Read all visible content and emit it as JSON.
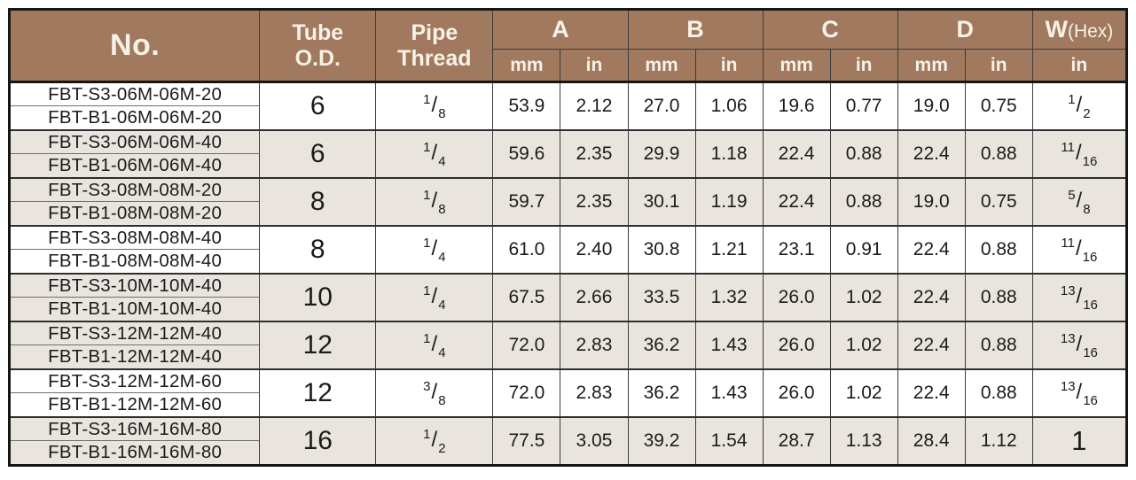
{
  "colors": {
    "header_bg": "#a1795f",
    "header_text": "#f7f2e7",
    "row_shaded": "#e9e5de",
    "row_plain": "#ffffff",
    "border_dark": "#161616",
    "grid": "#3c3c3c",
    "text": "#1b1b1b"
  },
  "table": {
    "headers": {
      "no": "No.",
      "tube_od": "Tube\nO.D.",
      "pipe_thread": "Pipe\nThread",
      "dims": [
        "A",
        "B",
        "C",
        "D"
      ],
      "w_label": "W",
      "w_suffix": "(Hex)",
      "unit_mm": "mm",
      "unit_in": "in"
    },
    "rows": [
      {
        "part_numbers": [
          "FBT-S3-06M-06M-20",
          "FBT-B1-06M-06M-20"
        ],
        "tube_od": "6",
        "pipe_thread": {
          "num": "1",
          "den": "8"
        },
        "values": [
          "53.9",
          "2.12",
          "27.0",
          "1.06",
          "19.6",
          "0.77",
          "19.0",
          "0.75"
        ],
        "w_hex": {
          "num": "1",
          "den": "2"
        },
        "shaded": false
      },
      {
        "part_numbers": [
          "FBT-S3-06M-06M-40",
          "FBT-B1-06M-06M-40"
        ],
        "tube_od": "6",
        "pipe_thread": {
          "num": "1",
          "den": "4"
        },
        "values": [
          "59.6",
          "2.35",
          "29.9",
          "1.18",
          "22.4",
          "0.88",
          "22.4",
          "0.88"
        ],
        "w_hex": {
          "num": "11",
          "den": "16"
        },
        "shaded": true
      },
      {
        "part_numbers": [
          "FBT-S3-08M-08M-20",
          "FBT-B1-08M-08M-20"
        ],
        "tube_od": "8",
        "pipe_thread": {
          "num": "1",
          "den": "8"
        },
        "values": [
          "59.7",
          "2.35",
          "30.1",
          "1.19",
          "22.4",
          "0.88",
          "19.0",
          "0.75"
        ],
        "w_hex": {
          "num": "5",
          "den": "8"
        },
        "shaded": true
      },
      {
        "part_numbers": [
          "FBT-S3-08M-08M-40",
          "FBT-B1-08M-08M-40"
        ],
        "tube_od": "8",
        "pipe_thread": {
          "num": "1",
          "den": "4"
        },
        "values": [
          "61.0",
          "2.40",
          "30.8",
          "1.21",
          "23.1",
          "0.91",
          "22.4",
          "0.88"
        ],
        "w_hex": {
          "num": "11",
          "den": "16"
        },
        "shaded": false
      },
      {
        "part_numbers": [
          "FBT-S3-10M-10M-40",
          "FBT-B1-10M-10M-40"
        ],
        "tube_od": "10",
        "pipe_thread": {
          "num": "1",
          "den": "4"
        },
        "values": [
          "67.5",
          "2.66",
          "33.5",
          "1.32",
          "26.0",
          "1.02",
          "22.4",
          "0.88"
        ],
        "w_hex": {
          "num": "13",
          "den": "16"
        },
        "shaded": true
      },
      {
        "part_numbers": [
          "FBT-S3-12M-12M-40",
          "FBT-B1-12M-12M-40"
        ],
        "tube_od": "12",
        "pipe_thread": {
          "num": "1",
          "den": "4"
        },
        "values": [
          "72.0",
          "2.83",
          "36.2",
          "1.43",
          "26.0",
          "1.02",
          "22.4",
          "0.88"
        ],
        "w_hex": {
          "num": "13",
          "den": "16"
        },
        "shaded": true
      },
      {
        "part_numbers": [
          "FBT-S3-12M-12M-60",
          "FBT-B1-12M-12M-60"
        ],
        "tube_od": "12",
        "pipe_thread": {
          "num": "3",
          "den": "8"
        },
        "values": [
          "72.0",
          "2.83",
          "36.2",
          "1.43",
          "26.0",
          "1.02",
          "22.4",
          "0.88"
        ],
        "w_hex": {
          "num": "13",
          "den": "16"
        },
        "shaded": false
      },
      {
        "part_numbers": [
          "FBT-S3-16M-16M-80",
          "FBT-B1-16M-16M-80"
        ],
        "tube_od": "16",
        "pipe_thread": {
          "num": "1",
          "den": "2"
        },
        "values": [
          "77.5",
          "3.05",
          "39.2",
          "1.54",
          "28.7",
          "1.13",
          "28.4",
          "1.12"
        ],
        "w_hex": {
          "whole": "1"
        },
        "shaded": true
      }
    ]
  }
}
